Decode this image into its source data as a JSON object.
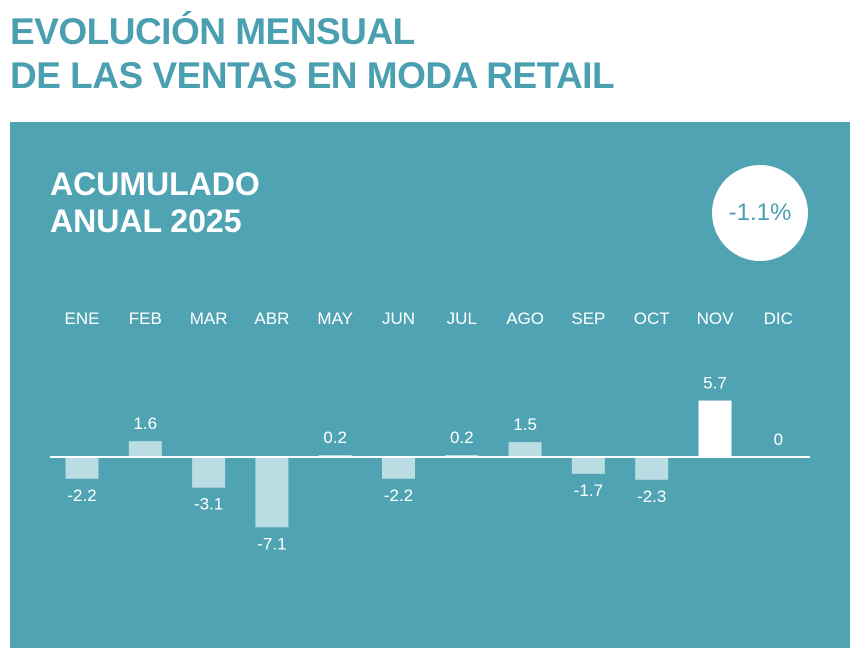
{
  "title_line1": "EVOLUCIÓN MENSUAL",
  "title_line2": "DE LAS VENTAS EN MODA RETAIL",
  "chart_data": {
    "type": "bar",
    "title": "ACUMULADO ANUAL 2025",
    "subtitle_line1": "ACUMULADO",
    "subtitle_line2": "ANUAL 2025",
    "annual_total": "-1.1%",
    "categories": [
      "ENE",
      "FEB",
      "MAR",
      "ABR",
      "MAY",
      "JUN",
      "JUL",
      "AGO",
      "SEP",
      "OCT",
      "NOV",
      "DIC"
    ],
    "values": [
      -2.2,
      1.6,
      -3.1,
      -7.1,
      0.2,
      -2.2,
      0.2,
      1.5,
      -1.7,
      -2.3,
      5.7,
      0
    ],
    "labels": [
      "-2.2",
      "1.6",
      "-3.1",
      "-7.1",
      "0.2",
      "-2.2",
      "0.2",
      "1.5",
      "-1.7",
      "-2.3",
      "5.7",
      "0"
    ],
    "highlight_category": "NOV",
    "colors": {
      "panel": "#50a3b3",
      "bar": "#b9dde3",
      "highlight_bar": "#ffffff",
      "title": "#4a9fb0"
    },
    "grid": false,
    "legend": "none"
  }
}
